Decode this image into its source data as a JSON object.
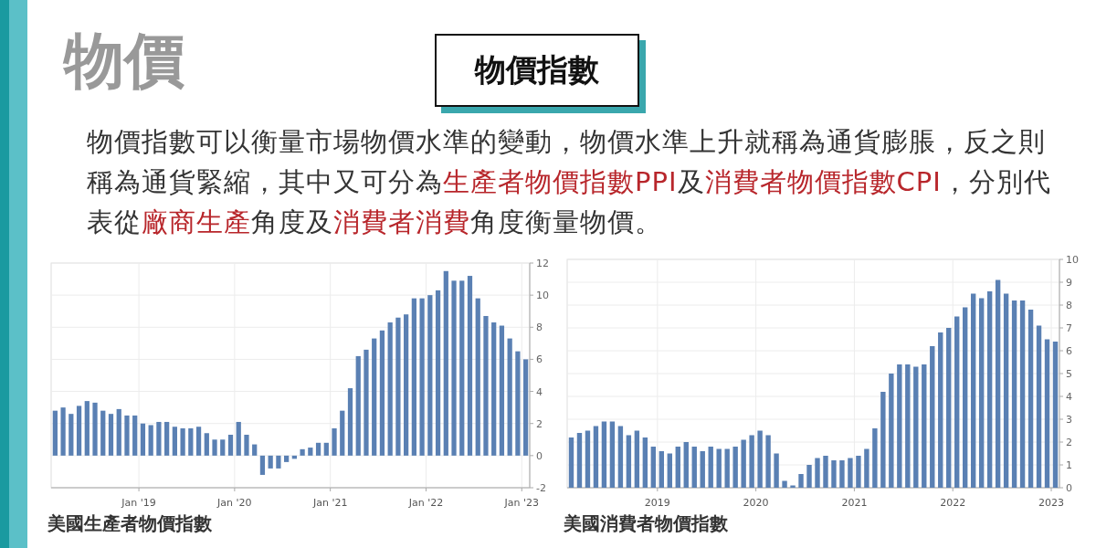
{
  "chart_data": [
    {
      "type": "other",
      "title": "物價",
      "subtitle": "物價指數",
      "annotations": [
        "物價指數可以衡量市場物價水準的變動，物價水準上升就稱為通貨膨脹，反之則稱為通貨緊縮，其中又可分為",
        "生產者物價指數PPI",
        "及",
        "消費者物價指數CPI",
        "，分別代表從",
        "廠商生產",
        "角度及",
        "消費者消費",
        "角度衡量物價。"
      ]
    },
    {
      "type": "bar",
      "title": "美國生產者物價指數",
      "color": "#5a80b3",
      "grid": true,
      "ylim": [
        -2,
        12
      ],
      "yticks": [
        -2,
        0,
        2,
        4,
        6,
        8,
        10,
        12
      ],
      "categories": [
        null,
        null,
        null,
        null,
        null,
        null,
        null,
        null,
        null,
        null,
        null,
        "Jan '19",
        null,
        null,
        null,
        null,
        null,
        null,
        null,
        null,
        null,
        null,
        null,
        "Jan '20",
        null,
        null,
        null,
        null,
        null,
        null,
        null,
        null,
        null,
        null,
        null,
        "Jan '21",
        null,
        null,
        null,
        null,
        null,
        null,
        null,
        null,
        null,
        null,
        null,
        "Jan '22",
        null,
        null,
        null,
        null,
        null,
        null,
        null,
        null,
        null,
        null,
        null,
        "Jan '23"
      ],
      "values": [
        2.8,
        3.0,
        2.6,
        3.1,
        3.4,
        3.3,
        2.8,
        2.6,
        2.9,
        2.5,
        2.5,
        2.0,
        1.9,
        2.1,
        2.1,
        1.8,
        1.7,
        1.7,
        1.8,
        1.4,
        1.0,
        1.0,
        1.3,
        2.1,
        1.3,
        0.7,
        -1.2,
        -0.8,
        -0.8,
        -0.4,
        -0.2,
        0.4,
        0.5,
        0.8,
        0.8,
        1.7,
        2.8,
        4.2,
        6.2,
        6.6,
        7.3,
        7.8,
        8.3,
        8.6,
        8.8,
        9.8,
        9.8,
        10.0,
        10.3,
        11.5,
        10.9,
        10.9,
        11.2,
        9.8,
        8.7,
        8.3,
        8.1,
        7.3,
        6.5,
        6.0
      ]
    },
    {
      "type": "bar",
      "title": "美國消費者物價指數",
      "color": "#5a80b3",
      "grid": true,
      "ylim": [
        0,
        10
      ],
      "yticks": [
        0,
        1,
        2,
        3,
        4,
        5,
        6,
        7,
        8,
        9,
        10
      ],
      "categories": [
        null,
        null,
        null,
        null,
        null,
        null,
        null,
        null,
        null,
        null,
        null,
        "2019",
        null,
        null,
        null,
        null,
        null,
        null,
        null,
        null,
        null,
        null,
        null,
        "2020",
        null,
        null,
        null,
        null,
        null,
        null,
        null,
        null,
        null,
        null,
        null,
        "2021",
        null,
        null,
        null,
        null,
        null,
        null,
        null,
        null,
        null,
        null,
        null,
        "2022",
        null,
        null,
        null,
        null,
        null,
        null,
        null,
        null,
        null,
        null,
        null,
        "2023"
      ],
      "values": [
        2.2,
        2.4,
        2.5,
        2.7,
        2.9,
        2.9,
        2.7,
        2.3,
        2.5,
        2.2,
        1.8,
        1.6,
        1.5,
        1.8,
        2.0,
        1.8,
        1.6,
        1.8,
        1.7,
        1.7,
        1.8,
        2.1,
        2.3,
        2.5,
        2.3,
        1.5,
        0.3,
        0.1,
        0.6,
        1.0,
        1.3,
        1.4,
        1.2,
        1.2,
        1.3,
        1.4,
        1.7,
        2.6,
        4.2,
        5.0,
        5.4,
        5.4,
        5.3,
        5.4,
        6.2,
        6.8,
        7.0,
        7.5,
        7.9,
        8.5,
        8.3,
        8.6,
        9.1,
        8.5,
        8.2,
        8.2,
        7.8,
        7.1,
        6.5,
        6.4
      ]
    }
  ]
}
